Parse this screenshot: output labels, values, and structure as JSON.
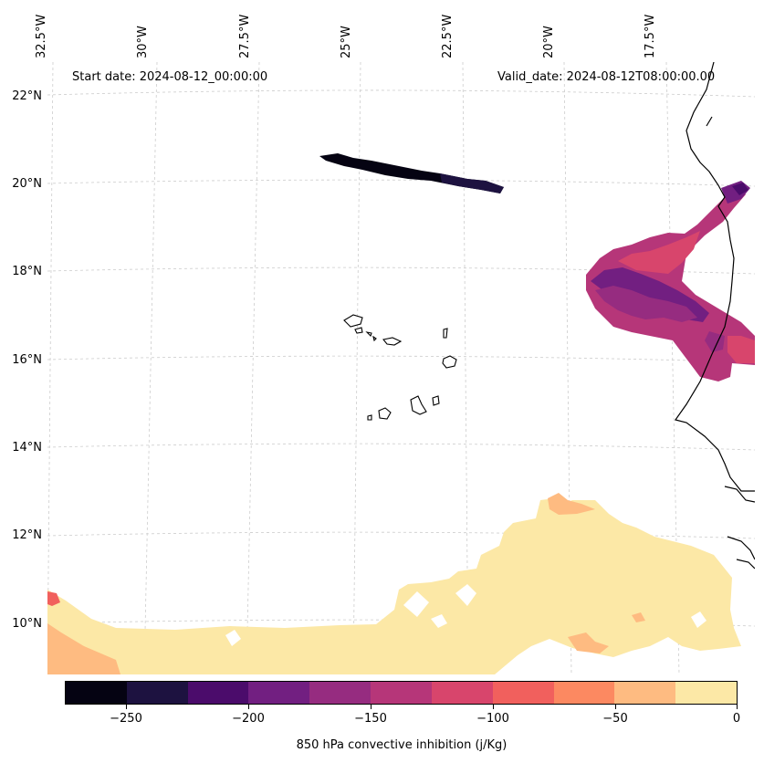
{
  "map": {
    "start_date": "Start date: 2024-08-12_00:00:00",
    "valid_date": "Valid_date: 2024-08-12T08:00:00.00",
    "lon_labels": [
      "32.5°W",
      "30°W",
      "27.5°W",
      "25°W",
      "22.5°W",
      "20°W",
      "17.5°W"
    ],
    "lat_labels": [
      "22°N",
      "20°N",
      "18°N",
      "16°N",
      "14°N",
      "12°N",
      "10°N"
    ],
    "variable": "850 hPa convective inhibition",
    "extent": {
      "lon_min": -32.5,
      "lon_max": -15.0,
      "lat_min": 8.9,
      "lat_max": 22.8
    }
  },
  "colorbar": {
    "label": "850 hPa convective inhibition (j/Kg)",
    "tick_labels": [
      "−250",
      "−200",
      "−150",
      "−100",
      "−50",
      "0"
    ],
    "levels": [
      -275,
      -250,
      -225,
      -200,
      -175,
      -150,
      -125,
      -100,
      -75,
      -50,
      -25,
      0
    ],
    "colors": [
      "#050312",
      "#1d1240",
      "#4b0c6b",
      "#721f81",
      "#962c80",
      "#b63679",
      "#d8456c",
      "#f1605d",
      "#fc8961",
      "#febb81",
      "#fce8a6"
    ]
  },
  "colors": {
    "coastline": "#000000",
    "gridline": "#cccccc",
    "land_bg": "#ffffff"
  }
}
